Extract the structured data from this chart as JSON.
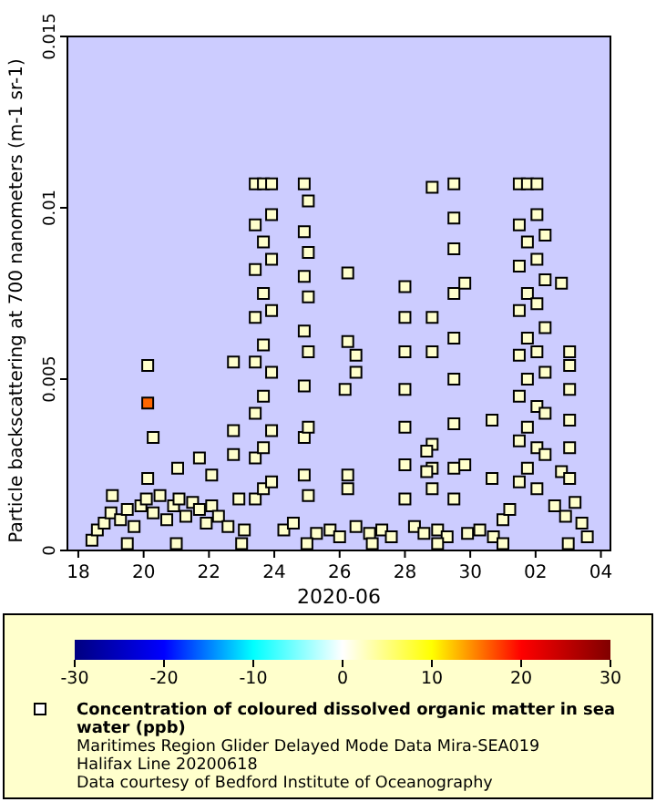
{
  "chart_data": {
    "type": "scatter",
    "xlabel": "2020-06",
    "ylabel": "Particle backscattering at 700 nanometers (m-1 sr-1)",
    "xlim": [
      "2020-06-17T16:00",
      "2020-07-04T07:00"
    ],
    "xticks": [
      {
        "value": "2020-06-18",
        "label": "18"
      },
      {
        "value": "2020-06-20",
        "label": "20"
      },
      {
        "value": "2020-06-22",
        "label": "22"
      },
      {
        "value": "2020-06-24",
        "label": "24"
      },
      {
        "value": "2020-06-26",
        "label": "26"
      },
      {
        "value": "2020-06-28",
        "label": "28"
      },
      {
        "value": "2020-06-30",
        "label": "30"
      },
      {
        "value": "2020-07-02",
        "label": "02"
      },
      {
        "value": "2020-07-04",
        "label": "04"
      }
    ],
    "ylim": [
      0,
      0.015
    ],
    "yticks": [
      0,
      0.005,
      0.01,
      0.015
    ],
    "clim": [
      -30,
      30
    ],
    "cticks": [
      -30,
      -20,
      -10,
      0,
      10,
      20,
      30
    ],
    "marker": "square",
    "legend": "bottom",
    "grid": false,
    "annotations": [
      "Maritimes Region Glider Delayed Mode Data Mira-SEA019 Halifax Line 20200618",
      "Data courtesy of Bedford Institute of Oceanography"
    ],
    "series": [
      {
        "name": "Concentration of coloured dissolved organic matter in sea water (ppb)",
        "x": [
          "2020-06-18T10:00",
          "2020-06-18T14:00",
          "2020-06-18T19:00",
          "2020-06-19T00:00",
          "2020-06-19T07:00",
          "2020-06-19T12:00",
          "2020-06-19T17:00",
          "2020-06-19T22:00",
          "2020-06-20T02:00",
          "2020-06-20T07:00",
          "2020-06-20T12:00",
          "2020-06-20T17:00",
          "2020-06-20T22:00",
          "2020-06-21T02:00",
          "2020-06-21T07:00",
          "2020-06-21T12:00",
          "2020-06-21T17:00",
          "2020-06-21T22:00",
          "2020-06-22T02:00",
          "2020-06-22T07:00",
          "2020-06-22T14:00",
          "2020-06-22T22:00",
          "2020-06-23T02:00",
          "2020-06-24T07:00",
          "2020-06-24T14:00",
          "2020-06-25T07:00",
          "2020-06-25T17:00",
          "2020-06-26T00:00",
          "2020-06-26T12:00",
          "2020-06-26T22:00",
          "2020-06-27T07:00",
          "2020-06-27T14:00",
          "2020-06-28T07:00",
          "2020-06-28T14:00",
          "2020-06-29T00:00",
          "2020-06-29T07:00",
          "2020-06-29T22:00",
          "2020-06-30T07:00",
          "2020-06-30T17:00",
          "2020-07-01T00:00",
          "2020-07-01T05:00",
          "2020-07-02T14:00",
          "2020-07-02T22:00",
          "2020-07-03T05:00",
          "2020-07-03T10:00",
          "2020-07-03T14:00",
          "2020-06-19T12:00",
          "2020-06-21T00:00",
          "2020-06-23T00:00",
          "2020-06-25T00:00",
          "2020-06-27T00:00",
          "2020-06-29T00:00",
          "2020-07-01T00:00",
          "2020-07-03T00:00",
          "2020-06-23T10:00",
          "2020-06-23T10:00",
          "2020-06-23T10:00",
          "2020-06-23T10:00",
          "2020-06-23T10:00",
          "2020-06-23T10:00",
          "2020-06-23T10:00",
          "2020-06-23T10:00",
          "2020-06-23T16:00",
          "2020-06-23T16:00",
          "2020-06-23T16:00",
          "2020-06-23T16:00",
          "2020-06-23T16:00",
          "2020-06-23T16:00",
          "2020-06-23T16:00",
          "2020-06-23T22:00",
          "2020-06-23T22:00",
          "2020-06-23T22:00",
          "2020-06-23T22:00",
          "2020-06-23T22:00",
          "2020-06-23T22:00",
          "2020-06-23T22:00",
          "2020-06-24T22:00",
          "2020-06-24T22:00",
          "2020-06-24T22:00",
          "2020-06-24T22:00",
          "2020-06-24T22:00",
          "2020-06-24T22:00",
          "2020-06-24T22:00",
          "2020-06-25T01:00",
          "2020-06-25T01:00",
          "2020-06-25T01:00",
          "2020-06-25T01:00",
          "2020-06-25T01:00",
          "2020-06-25T01:00",
          "2020-06-26T06:00",
          "2020-06-26T06:00",
          "2020-06-26T06:00",
          "2020-06-26T06:00",
          "2020-06-26T12:00",
          "2020-06-26T12:00",
          "2020-06-26T04:00",
          "2020-06-28T00:00",
          "2020-06-28T00:00",
          "2020-06-28T00:00",
          "2020-06-28T00:00",
          "2020-06-28T00:00",
          "2020-06-28T00:00",
          "2020-06-28T00:00",
          "2020-06-28T20:00",
          "2020-06-28T20:00",
          "2020-06-28T20:00",
          "2020-06-28T20:00",
          "2020-06-28T20:00",
          "2020-06-28T20:00",
          "2020-06-28T16:00",
          "2020-06-28T16:00",
          "2020-06-29T12:00",
          "2020-06-29T12:00",
          "2020-06-29T12:00",
          "2020-06-29T12:00",
          "2020-06-29T12:00",
          "2020-06-29T12:00",
          "2020-06-29T12:00",
          "2020-06-29T12:00",
          "2020-06-29T12:00",
          "2020-06-29T20:00",
          "2020-06-29T20:00",
          "2020-06-30T16:00",
          "2020-06-30T16:00",
          "2020-07-01T12:00",
          "2020-07-01T12:00",
          "2020-07-01T12:00",
          "2020-07-01T12:00",
          "2020-07-01T12:00",
          "2020-07-01T12:00",
          "2020-07-01T12:00",
          "2020-07-01T12:00",
          "2020-07-01T18:00",
          "2020-07-01T18:00",
          "2020-07-01T18:00",
          "2020-07-01T18:00",
          "2020-07-01T18:00",
          "2020-07-01T18:00",
          "2020-07-01T18:00",
          "2020-07-02T01:00",
          "2020-07-02T01:00",
          "2020-07-02T01:00",
          "2020-07-02T01:00",
          "2020-07-02T01:00",
          "2020-07-02T01:00",
          "2020-07-02T01:00",
          "2020-07-02T01:00",
          "2020-07-02T07:00",
          "2020-07-02T07:00",
          "2020-07-02T07:00",
          "2020-07-02T07:00",
          "2020-07-02T07:00",
          "2020-07-02T07:00",
          "2020-07-02T19:00",
          "2020-07-02T19:00",
          "2020-07-03T01:00",
          "2020-07-03T01:00",
          "2020-07-03T01:00",
          "2020-07-03T01:00",
          "2020-07-03T01:00",
          "2020-07-03T01:00",
          "2020-06-20T03:00",
          "2020-06-20T03:00",
          "2020-06-20T07:00",
          "2020-06-21T01:00",
          "2020-06-21T17:00",
          "2020-06-22T02:00",
          "2020-06-22T18:00",
          "2020-06-22T18:00",
          "2020-06-22T18:00",
          "2020-06-19T01:00",
          "2020-06-20T03:00"
        ],
        "values": [
          0.0003,
          0.0006,
          0.0008,
          0.0011,
          0.0009,
          0.0012,
          0.0007,
          0.0013,
          0.0015,
          0.0011,
          0.0016,
          0.0009,
          0.0013,
          0.0015,
          0.001,
          0.0014,
          0.0012,
          0.0008,
          0.0013,
          0.001,
          0.0007,
          0.0015,
          0.0006,
          0.0006,
          0.0008,
          0.0005,
          0.0006,
          0.0004,
          0.0007,
          0.0005,
          0.0006,
          0.0004,
          0.0007,
          0.0005,
          0.0006,
          0.0004,
          0.0005,
          0.0006,
          0.0004,
          0.0009,
          0.0012,
          0.0013,
          0.001,
          0.0014,
          0.0008,
          0.0004,
          0.0002,
          0.0002,
          0.0002,
          0.0002,
          0.0002,
          0.0002,
          0.0002,
          0.0002,
          0.0107,
          0.0095,
          0.0082,
          0.0068,
          0.0055,
          0.004,
          0.0027,
          0.0015,
          0.0107,
          0.009,
          0.0075,
          0.006,
          0.0045,
          0.003,
          0.0018,
          0.0107,
          0.0098,
          0.0085,
          0.007,
          0.0052,
          0.0035,
          0.002,
          0.0107,
          0.0093,
          0.008,
          0.0064,
          0.0048,
          0.0033,
          0.0022,
          0.0102,
          0.0087,
          0.0074,
          0.0058,
          0.0036,
          0.0016,
          0.0081,
          0.0061,
          0.0022,
          0.0018,
          0.0057,
          0.0052,
          0.0047,
          0.0077,
          0.0068,
          0.0058,
          0.0047,
          0.0036,
          0.0025,
          0.0015,
          0.0106,
          0.0068,
          0.0058,
          0.0031,
          0.0024,
          0.0018,
          0.0029,
          0.0023,
          0.0107,
          0.0097,
          0.0088,
          0.0075,
          0.0062,
          0.005,
          0.0037,
          0.0024,
          0.0015,
          0.0078,
          0.0025,
          0.0038,
          0.0021,
          0.0107,
          0.0095,
          0.0083,
          0.007,
          0.0057,
          0.0045,
          0.0032,
          0.002,
          0.0107,
          0.009,
          0.0075,
          0.0062,
          0.005,
          0.0036,
          0.0024,
          0.0107,
          0.0098,
          0.0085,
          0.0072,
          0.0058,
          0.0042,
          0.003,
          0.0018,
          0.0092,
          0.0079,
          0.0065,
          0.0052,
          0.004,
          0.0028,
          0.0078,
          0.0023,
          0.0058,
          0.0054,
          0.0047,
          0.0038,
          0.003,
          0.0021,
          0.0054,
          0.0021,
          0.0033,
          0.0024,
          0.0027,
          0.0022,
          0.0055,
          0.0035,
          0.0028,
          0.0016,
          0.0043
        ],
        "cvalues": [
          2,
          2,
          2,
          2,
          2,
          2,
          2,
          2,
          2,
          2,
          2,
          2,
          2,
          2,
          2,
          2,
          2,
          2,
          2,
          2,
          2,
          2,
          2,
          2,
          2,
          2,
          2,
          2,
          2,
          2,
          2,
          2,
          2,
          2,
          2,
          2,
          2,
          2,
          2,
          2,
          2,
          2,
          2,
          2,
          2,
          2,
          2,
          2,
          2,
          2,
          2,
          2,
          2,
          2,
          2,
          2,
          2,
          2,
          2,
          2,
          2,
          2,
          2,
          2,
          2,
          2,
          2,
          2,
          2,
          2,
          2,
          2,
          2,
          2,
          2,
          2,
          2,
          2,
          2,
          2,
          2,
          2,
          2,
          2,
          2,
          2,
          2,
          2,
          2,
          2,
          2,
          2,
          2,
          2,
          2,
          2,
          2,
          2,
          2,
          2,
          2,
          2,
          2,
          2,
          2,
          2,
          2,
          2,
          2,
          2,
          2,
          2,
          2,
          2,
          2,
          2,
          2,
          2,
          2,
          2,
          2,
          2,
          2,
          2,
          2,
          2,
          2,
          2,
          2,
          2,
          2,
          2,
          2,
          2,
          2,
          2,
          2,
          2,
          2,
          2,
          2,
          2,
          2,
          2,
          2,
          2,
          2,
          2,
          2,
          2,
          2,
          2,
          2,
          2,
          2,
          2,
          2,
          2,
          2,
          2,
          2,
          2,
          2,
          2,
          2,
          2,
          2,
          2,
          2,
          2,
          2,
          16
        ]
      }
    ]
  }
}
